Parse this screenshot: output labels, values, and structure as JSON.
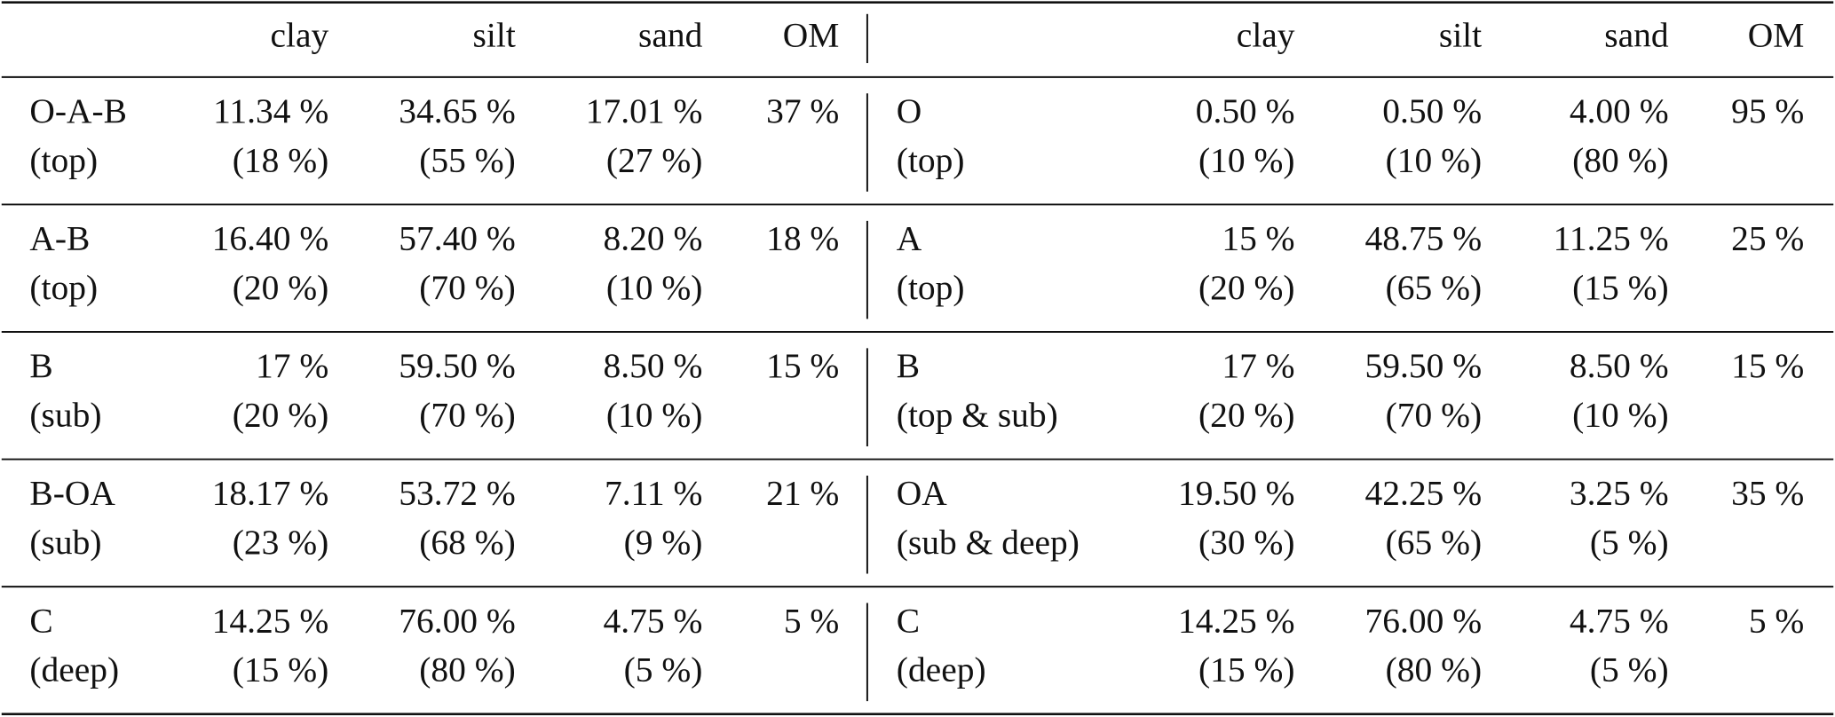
{
  "table": {
    "left": {
      "header": [
        "clay",
        "silt",
        "sand",
        "OM"
      ],
      "rows": [
        [
          [
            "O-A-B",
            "(top)"
          ],
          [
            "11.34 %",
            "(18 %)"
          ],
          [
            "34.65 %",
            "(55 %)"
          ],
          [
            "17.01 %",
            "(27 %)"
          ],
          [
            "37 %"
          ]
        ],
        [
          [
            "A-B",
            "(top)"
          ],
          [
            "16.40 %",
            "(20 %)"
          ],
          [
            "57.40 %",
            "(70 %)"
          ],
          [
            "8.20 %",
            "(10 %)"
          ],
          [
            "18 %"
          ]
        ],
        [
          [
            "B",
            "(sub)"
          ],
          [
            "17 %",
            "(20 %)"
          ],
          [
            "59.50 %",
            "(70 %)"
          ],
          [
            "8.50 %",
            "(10 %)"
          ],
          [
            "15 %"
          ]
        ],
        [
          [
            "B-OA",
            "(sub)"
          ],
          [
            "18.17 %",
            "(23 %)"
          ],
          [
            "53.72 %",
            "(68 %)"
          ],
          [
            "7.11 %",
            "(9 %)"
          ],
          [
            "21 %"
          ]
        ],
        [
          [
            "C",
            "(deep)"
          ],
          [
            "14.25 %",
            "(15 %)"
          ],
          [
            "76.00 %",
            "(80 %)"
          ],
          [
            "4.75 %",
            "(5 %)"
          ],
          [
            "5 %"
          ]
        ]
      ]
    },
    "right": {
      "header": [
        "clay",
        "silt",
        "sand",
        "OM"
      ],
      "rows": [
        [
          [
            "O",
            "(top)"
          ],
          [
            "0.50 %",
            "(10 %)"
          ],
          [
            "0.50 %",
            "(10 %)"
          ],
          [
            "4.00 %",
            "(80 %)"
          ],
          [
            "95 %"
          ]
        ],
        [
          [
            "A",
            "(top)"
          ],
          [
            "15 %",
            "(20 %)"
          ],
          [
            "48.75 %",
            "(65 %)"
          ],
          [
            "11.25 %",
            "(15 %)"
          ],
          [
            "25 %"
          ]
        ],
        [
          [
            "B",
            "(top & sub)"
          ],
          [
            "17 %",
            "(20 %)"
          ],
          [
            "59.50 %",
            "(70 %)"
          ],
          [
            "8.50 %",
            "(10 %)"
          ],
          [
            "15 %"
          ]
        ],
        [
          [
            "OA",
            "(sub & deep)"
          ],
          [
            "19.50 %",
            "(30 %)"
          ],
          [
            "42.25 %",
            "(65 %)"
          ],
          [
            "3.25 %",
            "(5 %)"
          ],
          [
            "35 %"
          ]
        ],
        [
          [
            "C",
            "(deep)"
          ],
          [
            "14.25 %",
            "(15 %)"
          ],
          [
            "76.00 %",
            "(80 %)"
          ],
          [
            "4.75 %",
            "(5 %)"
          ],
          [
            "5 %"
          ]
        ]
      ]
    }
  }
}
